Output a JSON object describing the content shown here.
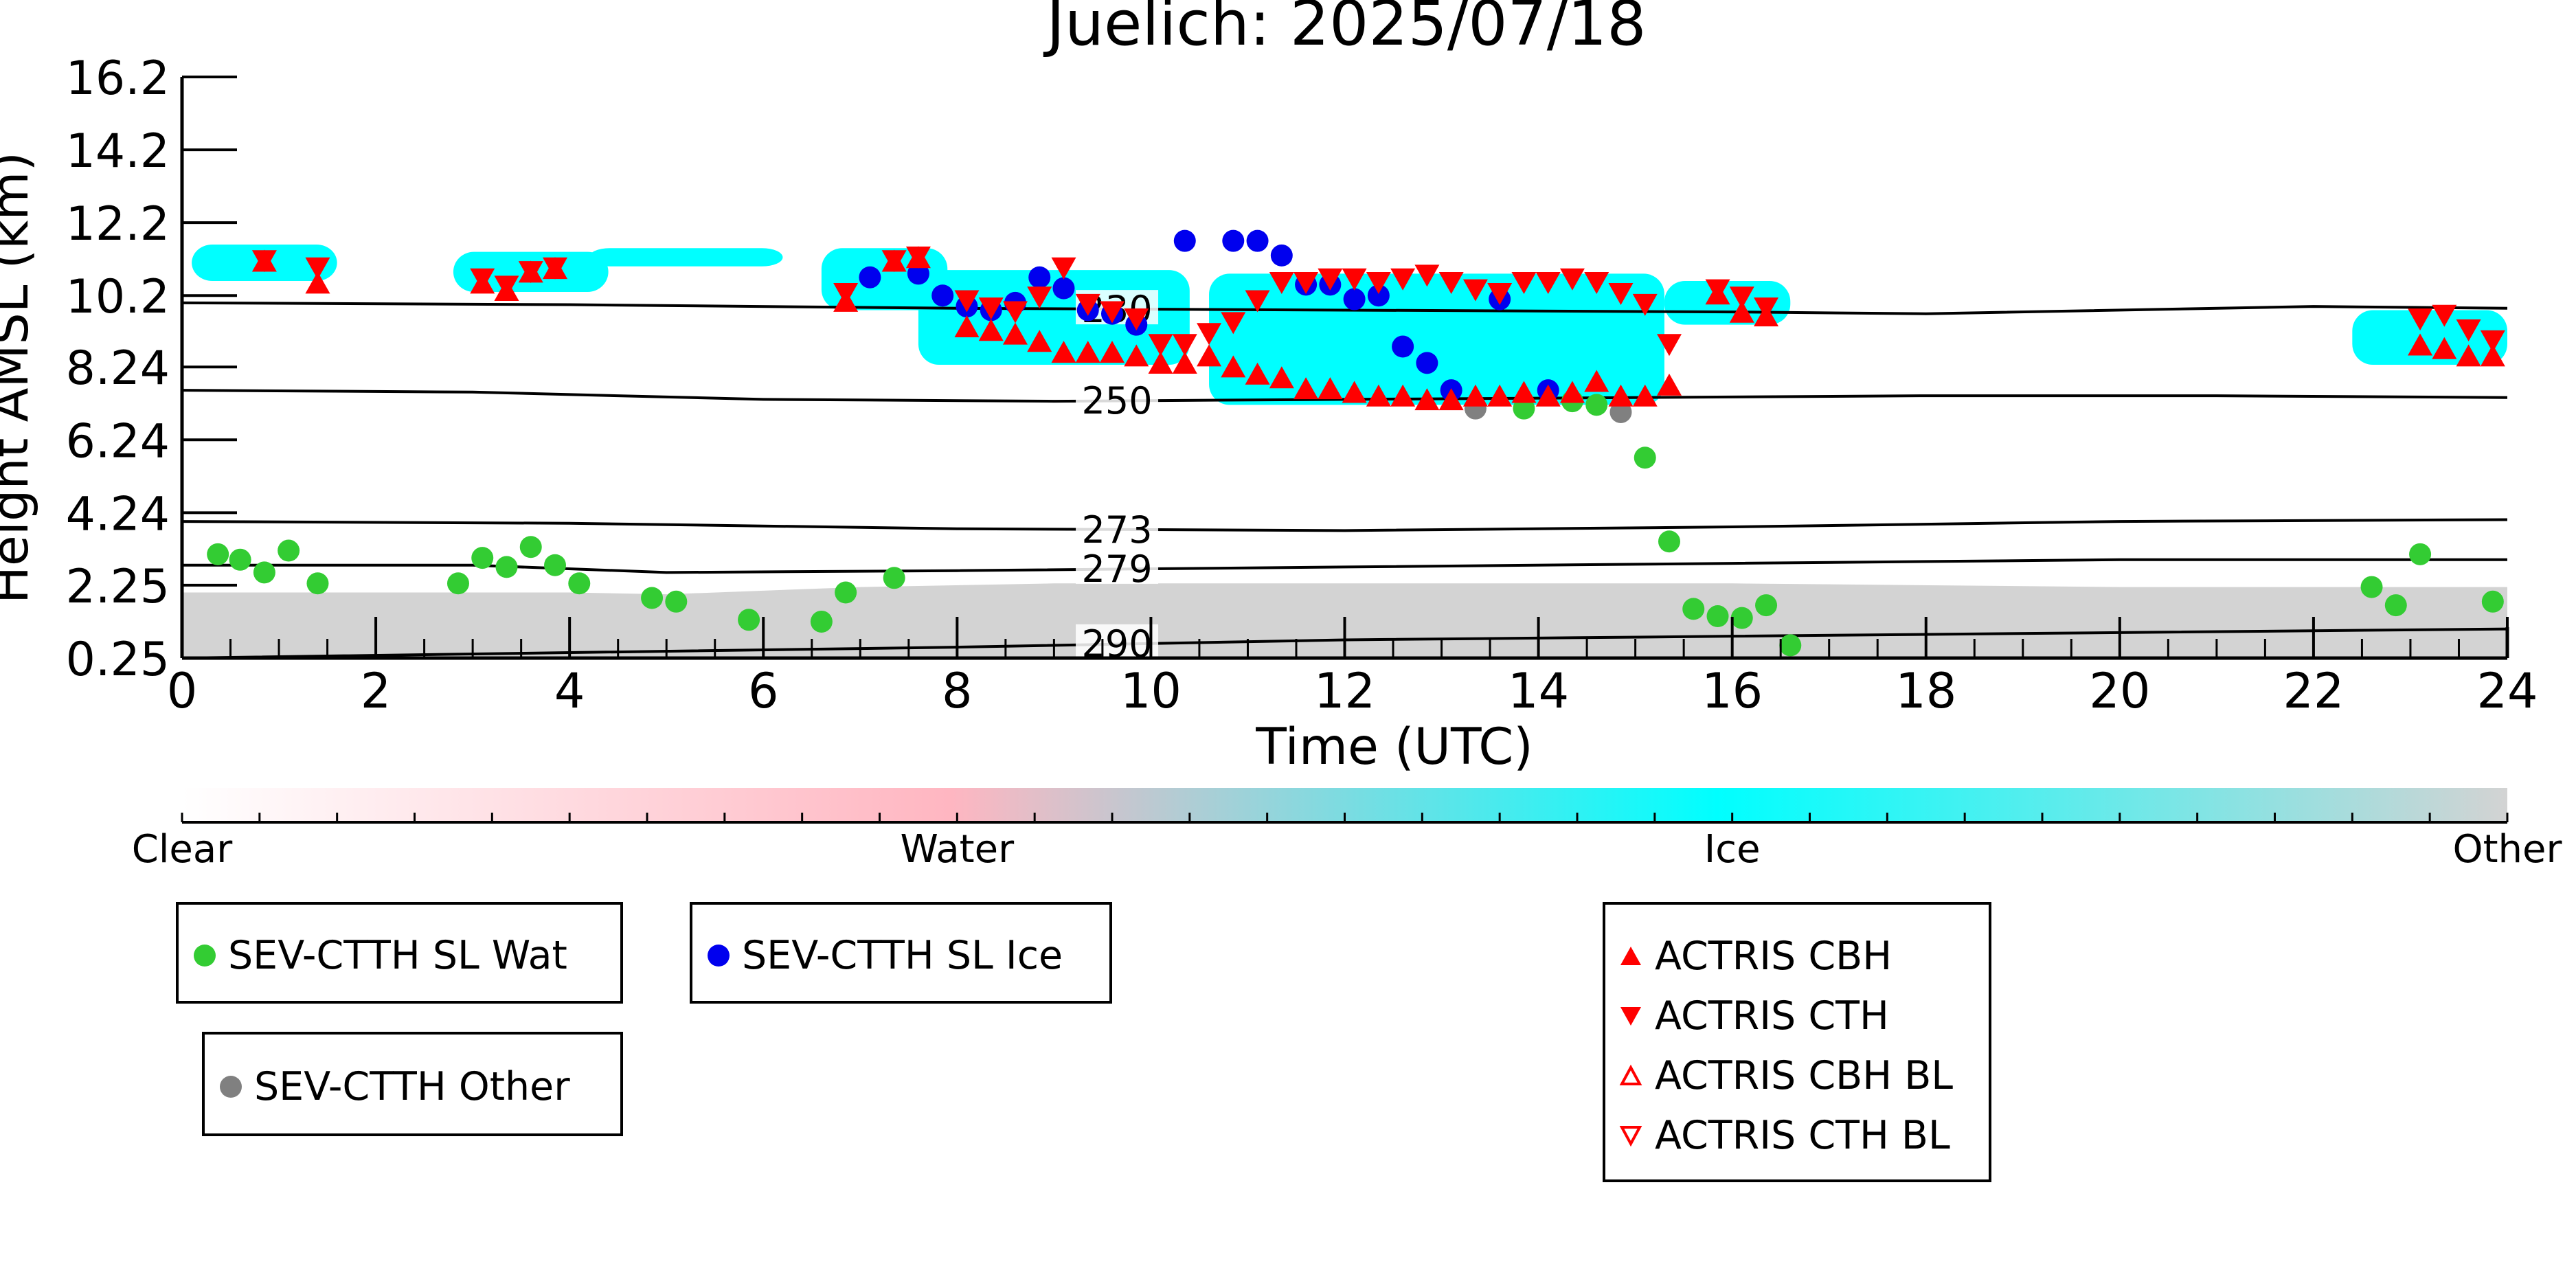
{
  "chart_data": {
    "type": "scatter",
    "title": "Juelich: 2025/07/18",
    "xlabel": "Time (UTC)",
    "ylabel": "Height AMSL (km)",
    "xlim": [
      0,
      24
    ],
    "ylim": [
      0.25,
      16.2
    ],
    "x_ticks": [
      0,
      2,
      4,
      6,
      8,
      10,
      12,
      14,
      16,
      18,
      20,
      22,
      24
    ],
    "y_ticks": [
      "0.25",
      "2.25",
      "4.24",
      "6.24",
      "8.24",
      "10.2",
      "12.2",
      "14.2",
      "16.2"
    ],
    "grid": false,
    "background": "cloud classification image (Clear / Water / Ice / Other)",
    "colorbar": {
      "labels": [
        "Clear",
        "Water",
        "Ice",
        "Other"
      ],
      "colors": [
        "#ffffff",
        "#ffb6c1",
        "#00ffff",
        "#d3d3d3"
      ]
    },
    "temperature_contours": [
      {
        "label": "230",
        "x": [
          0,
          4,
          8,
          12,
          16,
          18,
          22,
          24
        ],
        "y": [
          10.0,
          9.95,
          9.85,
          9.8,
          9.75,
          9.7,
          9.9,
          9.85
        ]
      },
      {
        "label": "250",
        "x": [
          0,
          3,
          6,
          9,
          12,
          15,
          18,
          21,
          24
        ],
        "y": [
          7.6,
          7.55,
          7.35,
          7.3,
          7.35,
          7.4,
          7.45,
          7.45,
          7.4
        ]
      },
      {
        "label": "273",
        "x": [
          0,
          4,
          8,
          12,
          16,
          20,
          24
        ],
        "y": [
          4.0,
          3.95,
          3.8,
          3.75,
          3.85,
          4.0,
          4.05
        ]
      },
      {
        "label": "279",
        "x": [
          0,
          3,
          5,
          8,
          12,
          16,
          20,
          24
        ],
        "y": [
          2.8,
          2.8,
          2.6,
          2.65,
          2.75,
          2.85,
          2.95,
          2.95
        ]
      },
      {
        "label": "290",
        "x": [
          0,
          4,
          8,
          12,
          16,
          20,
          24
        ],
        "y": [
          0.25,
          0.4,
          0.55,
          0.75,
          0.85,
          0.95,
          1.05
        ]
      }
    ],
    "series": [
      {
        "name": "SEV-CTTH SL Wat",
        "color": "#33cc33",
        "marker": "circle",
        "points": [
          [
            0.37,
            3.1
          ],
          [
            0.6,
            2.95
          ],
          [
            0.85,
            2.6
          ],
          [
            1.1,
            3.2
          ],
          [
            1.4,
            2.3
          ],
          [
            2.85,
            2.3
          ],
          [
            3.1,
            3.0
          ],
          [
            3.35,
            2.75
          ],
          [
            3.6,
            3.3
          ],
          [
            3.85,
            2.8
          ],
          [
            4.1,
            2.3
          ],
          [
            4.85,
            1.9
          ],
          [
            5.1,
            1.8
          ],
          [
            5.85,
            1.3
          ],
          [
            6.6,
            1.25
          ],
          [
            6.85,
            2.05
          ],
          [
            7.35,
            2.45
          ],
          [
            13.85,
            7.1
          ],
          [
            14.35,
            7.3
          ],
          [
            14.6,
            7.2
          ],
          [
            15.1,
            5.75
          ],
          [
            15.35,
            3.45
          ],
          [
            15.6,
            1.6
          ],
          [
            15.85,
            1.4
          ],
          [
            16.1,
            1.35
          ],
          [
            16.35,
            1.7
          ],
          [
            16.6,
            0.6
          ],
          [
            22.6,
            2.2
          ],
          [
            22.85,
            1.7
          ],
          [
            23.1,
            3.1
          ],
          [
            23.85,
            1.8
          ]
        ]
      },
      {
        "name": "SEV-CTTH SL Ice",
        "color": "#0000ee",
        "marker": "circle",
        "points": [
          [
            7.1,
            10.7
          ],
          [
            7.6,
            10.8
          ],
          [
            7.85,
            10.2
          ],
          [
            8.1,
            9.9
          ],
          [
            8.35,
            9.8
          ],
          [
            8.6,
            10.0
          ],
          [
            8.85,
            10.7
          ],
          [
            9.1,
            10.4
          ],
          [
            9.35,
            9.8
          ],
          [
            9.6,
            9.7
          ],
          [
            9.85,
            9.4
          ],
          [
            10.35,
            11.7
          ],
          [
            10.85,
            11.7
          ],
          [
            11.1,
            11.7
          ],
          [
            11.35,
            11.3
          ],
          [
            11.6,
            10.5
          ],
          [
            11.85,
            10.5
          ],
          [
            12.1,
            10.1
          ],
          [
            12.35,
            10.2
          ],
          [
            12.6,
            8.8
          ],
          [
            12.85,
            8.35
          ],
          [
            13.1,
            7.6
          ],
          [
            13.6,
            10.1
          ],
          [
            14.1,
            7.6
          ]
        ]
      },
      {
        "name": "SEV-CTTH Other",
        "color": "#808080",
        "marker": "circle",
        "points": [
          [
            13.35,
            7.1
          ],
          [
            14.85,
            7.0
          ]
        ]
      },
      {
        "name": "ACTRIS CBH",
        "color": "#ff0000",
        "marker": "triangle-up",
        "points": [
          [
            0.85,
            11.1
          ],
          [
            1.4,
            10.5
          ],
          [
            3.1,
            10.5
          ],
          [
            3.35,
            10.3
          ],
          [
            3.6,
            10.8
          ],
          [
            3.85,
            10.9
          ],
          [
            6.85,
            10.0
          ],
          [
            7.35,
            11.1
          ],
          [
            7.6,
            11.2
          ],
          [
            8.1,
            9.3
          ],
          [
            8.35,
            9.2
          ],
          [
            8.6,
            9.1
          ],
          [
            8.85,
            8.9
          ],
          [
            9.1,
            8.6
          ],
          [
            9.35,
            8.6
          ],
          [
            9.6,
            8.6
          ],
          [
            9.85,
            8.5
          ],
          [
            10.1,
            8.3
          ],
          [
            10.35,
            8.3
          ],
          [
            10.6,
            8.5
          ],
          [
            10.85,
            8.2
          ],
          [
            11.1,
            8.0
          ],
          [
            11.35,
            7.9
          ],
          [
            11.6,
            7.6
          ],
          [
            11.85,
            7.6
          ],
          [
            12.1,
            7.5
          ],
          [
            12.35,
            7.4
          ],
          [
            12.6,
            7.4
          ],
          [
            12.85,
            7.3
          ],
          [
            13.1,
            7.3
          ],
          [
            13.35,
            7.4
          ],
          [
            13.6,
            7.4
          ],
          [
            13.85,
            7.5
          ],
          [
            14.1,
            7.4
          ],
          [
            14.35,
            7.5
          ],
          [
            14.6,
            7.8
          ],
          [
            14.85,
            7.4
          ],
          [
            15.1,
            7.4
          ],
          [
            15.35,
            7.7
          ],
          [
            15.85,
            10.2
          ],
          [
            16.1,
            9.7
          ],
          [
            16.35,
            9.6
          ],
          [
            23.1,
            8.8
          ],
          [
            23.35,
            8.7
          ],
          [
            23.6,
            8.5
          ],
          [
            23.85,
            8.5
          ]
        ]
      },
      {
        "name": "ACTRIS CTH",
        "color": "#ff0000",
        "marker": "triangle-down",
        "points": [
          [
            0.85,
            11.2
          ],
          [
            1.4,
            11.0
          ],
          [
            3.1,
            10.7
          ],
          [
            3.35,
            10.5
          ],
          [
            3.6,
            10.9
          ],
          [
            3.85,
            11.0
          ],
          [
            6.85,
            10.3
          ],
          [
            7.35,
            11.2
          ],
          [
            7.6,
            11.3
          ],
          [
            8.1,
            10.1
          ],
          [
            8.35,
            9.9
          ],
          [
            8.6,
            9.8
          ],
          [
            8.85,
            10.2
          ],
          [
            9.1,
            11.0
          ],
          [
            9.35,
            10.0
          ],
          [
            9.6,
            9.8
          ],
          [
            9.85,
            9.6
          ],
          [
            10.1,
            8.9
          ],
          [
            10.35,
            8.9
          ],
          [
            10.6,
            9.2
          ],
          [
            10.85,
            9.5
          ],
          [
            11.1,
            10.1
          ],
          [
            11.35,
            10.6
          ],
          [
            11.6,
            10.6
          ],
          [
            11.85,
            10.7
          ],
          [
            12.1,
            10.7
          ],
          [
            12.35,
            10.6
          ],
          [
            12.6,
            10.7
          ],
          [
            12.85,
            10.8
          ],
          [
            13.1,
            10.6
          ],
          [
            13.35,
            10.4
          ],
          [
            13.6,
            10.3
          ],
          [
            13.85,
            10.6
          ],
          [
            14.1,
            10.6
          ],
          [
            14.35,
            10.7
          ],
          [
            14.6,
            10.6
          ],
          [
            14.85,
            10.3
          ],
          [
            15.1,
            10.0
          ],
          [
            15.35,
            8.9
          ],
          [
            15.85,
            10.4
          ],
          [
            16.1,
            10.2
          ],
          [
            16.35,
            9.9
          ],
          [
            23.1,
            9.6
          ],
          [
            23.35,
            9.7
          ],
          [
            23.6,
            9.3
          ],
          [
            23.85,
            9.0
          ]
        ]
      },
      {
        "name": "ACTRIS CBH BL",
        "color": "#ff0000",
        "marker": "triangle-up-open",
        "points": []
      },
      {
        "name": "ACTRIS CTH BL",
        "color": "#ff0000",
        "marker": "triangle-down-open",
        "points": []
      }
    ],
    "legend": [
      {
        "label": "SEV-CTTH SL Wat",
        "color": "#33cc33"
      },
      {
        "label": "SEV-CTTH SL Ice",
        "color": "#0000ee"
      },
      {
        "label": "SEV-CTTH Other",
        "color": "#808080"
      },
      {
        "label": "ACTRIS CBH",
        "color": "#ff0000"
      },
      {
        "label": "ACTRIS CTH",
        "color": "#ff0000"
      },
      {
        "label": "ACTRIS CBH BL",
        "color": "#ff0000"
      },
      {
        "label": "ACTRIS CTH BL",
        "color": "#ff0000"
      }
    ]
  }
}
